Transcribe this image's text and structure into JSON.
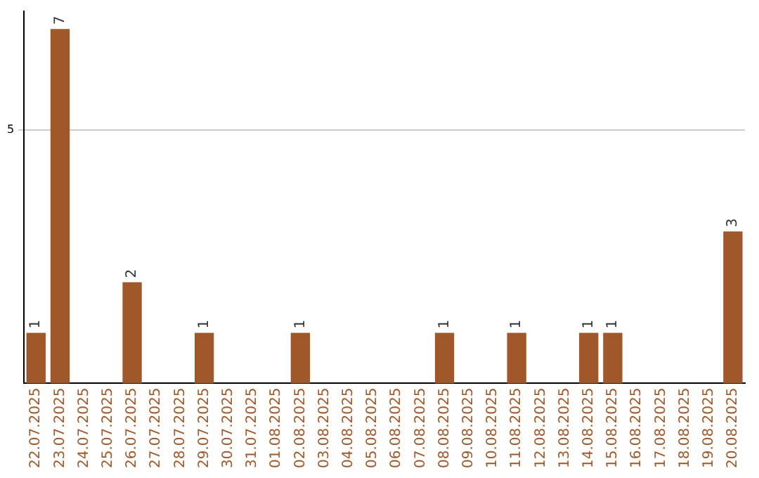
{
  "chart_data": {
    "type": "bar",
    "categories": [
      "22.07.2025",
      "23.07.2025",
      "24.07.2025",
      "25.07.2025",
      "26.07.2025",
      "27.07.2025",
      "28.07.2025",
      "29.07.2025",
      "30.07.2025",
      "31.07.2025",
      "01.08.2025",
      "02.08.2025",
      "03.08.2025",
      "04.08.2025",
      "05.08.2025",
      "06.08.2025",
      "07.08.2025",
      "08.08.2025",
      "09.08.2025",
      "10.08.2025",
      "11.08.2025",
      "12.08.2025",
      "13.08.2025",
      "14.08.2025",
      "15.08.2025",
      "16.08.2025",
      "17.08.2025",
      "18.08.2025",
      "19.08.2025",
      "20.08.2025"
    ],
    "values": [
      1,
      7,
      0,
      0,
      2,
      0,
      0,
      1,
      0,
      0,
      0,
      1,
      0,
      0,
      0,
      0,
      0,
      1,
      0,
      0,
      1,
      0,
      0,
      1,
      1,
      0,
      0,
      0,
      0,
      3
    ],
    "value_labels": [
      "1",
      "7",
      null,
      null,
      "2",
      null,
      null,
      "1",
      null,
      null,
      null,
      "1",
      null,
      null,
      null,
      null,
      null,
      "1",
      null,
      null,
      "1",
      null,
      null,
      "1",
      "1",
      null,
      null,
      null,
      null,
      "3"
    ],
    "color": "#a0582a",
    "ylim": [
      0,
      7.35
    ],
    "yticks": [
      5
    ],
    "grid": "y",
    "legend": false
  }
}
